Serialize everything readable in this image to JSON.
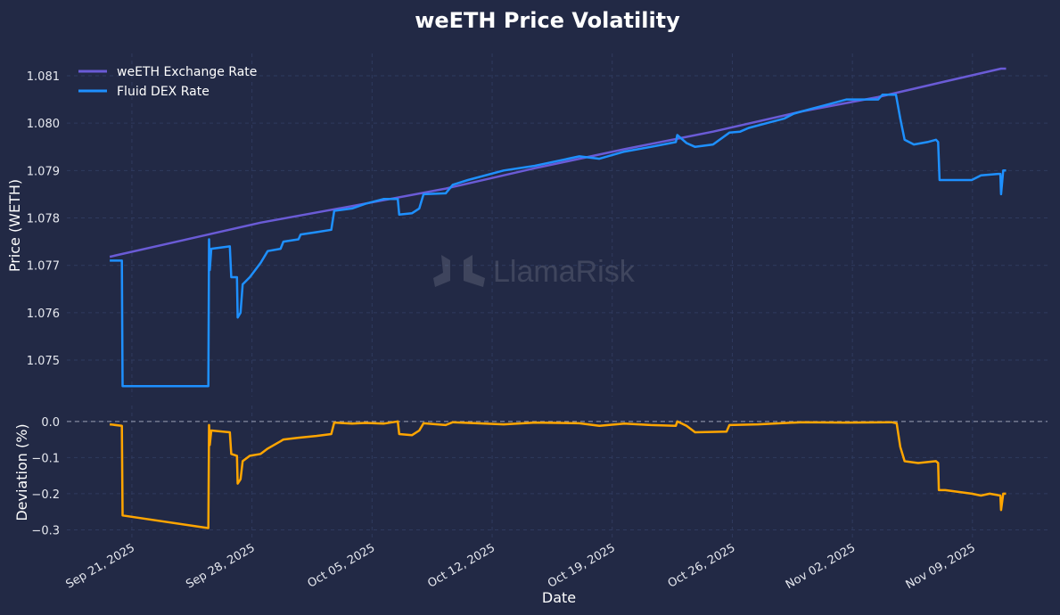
{
  "chart_data": [
    {
      "type": "line",
      "title": "weETH Price Volatility",
      "xlabel": "",
      "ylabel": "Price (WETH)",
      "xlim": [
        "2025-09-17T05:00",
        "2025-11-13T09:00"
      ],
      "ylim": [
        1.07423,
        1.08147
      ],
      "yticks": [
        1.075,
        1.076,
        1.077,
        1.078,
        1.079,
        1.08,
        1.081
      ],
      "ytick_labels": [
        "1.075",
        "1.076",
        "1.077",
        "1.078",
        "1.079",
        "1.080",
        "1.081"
      ],
      "grid": true,
      "legend_placement": "top-left",
      "series": [
        {
          "name": "weETH Exchange Rate",
          "color": "#6a5bd6",
          "points": [
            [
              "2025-09-19T17:00",
              1.07718
            ],
            [
              "2025-09-23T00:00",
              1.07745
            ],
            [
              "2025-09-28T12:00",
              1.0779
            ],
            [
              "2025-10-03T20:00",
              1.07825
            ],
            [
              "2025-10-09T07:00",
              1.07862
            ],
            [
              "2025-10-14T12:00",
              1.07905
            ],
            [
              "2025-10-19T17:00",
              1.07945
            ],
            [
              "2025-10-24T21:00",
              1.07982
            ],
            [
              "2025-10-30T02:00",
              1.08025
            ],
            [
              "2025-11-03T12:00",
              1.08055
            ],
            [
              "2025-11-07T10:00",
              1.08088
            ],
            [
              "2025-11-10T16:00",
              1.08115
            ],
            [
              "2025-11-10T23:00",
              1.08115
            ]
          ]
        },
        {
          "name": "Fluid DEX Rate",
          "color": "#1e90ff",
          "points": [
            [
              "2025-09-19T17:00",
              1.0771
            ],
            [
              "2025-09-20T10:00",
              1.0771
            ],
            [
              "2025-09-20T11:00",
              1.07445
            ],
            [
              "2025-09-25T11:00",
              1.07445
            ],
            [
              "2025-09-25T12:00",
              1.07755
            ],
            [
              "2025-09-25T13:00",
              1.0769
            ],
            [
              "2025-09-25T15:00",
              1.07735
            ],
            [
              "2025-09-26T17:00",
              1.0774
            ],
            [
              "2025-09-26T19:00",
              1.07675
            ],
            [
              "2025-09-27T03:00",
              1.07675
            ],
            [
              "2025-09-27T04:00",
              1.0759
            ],
            [
              "2025-09-27T08:00",
              1.076
            ],
            [
              "2025-09-27T11:00",
              1.0766
            ],
            [
              "2025-09-27T21:00",
              1.07675
            ],
            [
              "2025-09-28T12:00",
              1.07705
            ],
            [
              "2025-09-28T22:00",
              1.0773
            ],
            [
              "2025-09-29T16:00",
              1.07735
            ],
            [
              "2025-09-29T20:00",
              1.0775
            ],
            [
              "2025-09-30T17:00",
              1.07755
            ],
            [
              "2025-09-30T20:00",
              1.07765
            ],
            [
              "2025-10-01T18:00",
              1.0777
            ],
            [
              "2025-10-02T15:00",
              1.07775
            ],
            [
              "2025-10-02T19:00",
              1.07815
            ],
            [
              "2025-10-03T20:00",
              1.0782
            ],
            [
              "2025-10-04T15:00",
              1.0783
            ],
            [
              "2025-10-05T16:00",
              1.0784
            ],
            [
              "2025-10-06T12:00",
              1.0784
            ],
            [
              "2025-10-06T14:00",
              1.07807
            ],
            [
              "2025-10-07T08:00",
              1.0781
            ],
            [
              "2025-10-07T18:00",
              1.0782
            ],
            [
              "2025-10-08T00:00",
              1.0785
            ],
            [
              "2025-10-09T07:00",
              1.07852
            ],
            [
              "2025-10-09T17:00",
              1.0787
            ],
            [
              "2025-10-10T14:00",
              1.0788
            ],
            [
              "2025-10-12T16:00",
              1.079
            ],
            [
              "2025-10-14T12:00",
              1.0791
            ],
            [
              "2025-10-15T19:00",
              1.0792
            ],
            [
              "2025-10-17T02:00",
              1.0793
            ],
            [
              "2025-10-18T06:00",
              1.07925
            ],
            [
              "2025-10-19T17:00",
              1.0794
            ],
            [
              "2025-10-21T06:00",
              1.0795
            ],
            [
              "2025-10-22T17:00",
              1.0796
            ],
            [
              "2025-10-22T19:00",
              1.07975
            ],
            [
              "2025-10-23T08:00",
              1.07958
            ],
            [
              "2025-10-23T20:00",
              1.0795
            ],
            [
              "2025-10-24T21:00",
              1.07955
            ],
            [
              "2025-10-25T20:00",
              1.0798
            ],
            [
              "2025-10-26T11:00",
              1.07982
            ],
            [
              "2025-10-26T23:00",
              1.0799
            ],
            [
              "2025-10-28T00:00",
              1.08
            ],
            [
              "2025-10-29T01:00",
              1.0801
            ],
            [
              "2025-10-29T14:00",
              1.0802
            ],
            [
              "2025-10-30T14:00",
              1.0803
            ],
            [
              "2025-10-31T15:00",
              1.0804
            ],
            [
              "2025-11-01T16:00",
              1.0805
            ],
            [
              "2025-11-03T12:00",
              1.0805
            ],
            [
              "2025-11-03T18:00",
              1.0806
            ],
            [
              "2025-11-04T13:00",
              1.0806
            ],
            [
              "2025-11-04T19:00",
              1.0801
            ],
            [
              "2025-11-05T01:00",
              1.07965
            ],
            [
              "2025-11-05T14:00",
              1.07955
            ],
            [
              "2025-11-06T09:00",
              1.0796
            ],
            [
              "2025-11-06T21:00",
              1.07965
            ],
            [
              "2025-11-07T00:00",
              1.0796
            ],
            [
              "2025-11-07T02:00",
              1.0788
            ],
            [
              "2025-11-08T23:00",
              1.0788
            ],
            [
              "2025-11-09T12:00",
              1.0789
            ],
            [
              "2025-11-10T12:00",
              1.07893
            ],
            [
              "2025-11-10T15:00",
              1.07893
            ],
            [
              "2025-11-10T16:00",
              1.0785
            ],
            [
              "2025-11-10T19:00",
              1.079
            ],
            [
              "2025-11-10T23:00",
              1.079
            ]
          ]
        }
      ]
    },
    {
      "type": "line",
      "xlabel": "Date",
      "ylabel": "Deviation (%)",
      "xlim": [
        "2025-09-17T05:00",
        "2025-11-13T09:00"
      ],
      "ylim": [
        -0.321,
        0.044
      ],
      "yticks": [
        0.0,
        -0.1,
        -0.2,
        -0.3
      ],
      "ytick_labels": [
        "0.0",
        "−0.1",
        "−0.2",
        "−0.3"
      ],
      "xticks": [
        "2025-09-21",
        "2025-09-28",
        "2025-10-05",
        "2025-10-12",
        "2025-10-19",
        "2025-10-26",
        "2025-11-02",
        "2025-11-09"
      ],
      "xtick_labels": [
        "Sep 21, 2025",
        "Sep 28, 2025",
        "Oct 05, 2025",
        "Oct 12, 2025",
        "Oct 19, 2025",
        "Oct 26, 2025",
        "Nov 02, 2025",
        "Nov 09, 2025"
      ],
      "reference_line": 0.0,
      "grid": true,
      "series": [
        {
          "color": "#ffa500",
          "points": [
            [
              "2025-09-19T17:00",
              -0.008
            ],
            [
              "2025-09-20T10:00",
              -0.012
            ],
            [
              "2025-09-20T11:00",
              -0.26
            ],
            [
              "2025-09-25T11:00",
              -0.295
            ],
            [
              "2025-09-25T12:00",
              -0.01
            ],
            [
              "2025-09-25T13:00",
              -0.065
            ],
            [
              "2025-09-25T15:00",
              -0.025
            ],
            [
              "2025-09-26T17:00",
              -0.03
            ],
            [
              "2025-09-26T19:00",
              -0.09
            ],
            [
              "2025-09-27T03:00",
              -0.095
            ],
            [
              "2025-09-27T04:00",
              -0.172
            ],
            [
              "2025-09-27T08:00",
              -0.16
            ],
            [
              "2025-09-27T11:00",
              -0.11
            ],
            [
              "2025-09-27T21:00",
              -0.095
            ],
            [
              "2025-09-28T12:00",
              -0.09
            ],
            [
              "2025-09-28T22:00",
              -0.075
            ],
            [
              "2025-09-29T16:00",
              -0.055
            ],
            [
              "2025-09-29T20:00",
              -0.05
            ],
            [
              "2025-09-30T17:00",
              -0.045
            ],
            [
              "2025-10-01T18:00",
              -0.04
            ],
            [
              "2025-10-02T15:00",
              -0.035
            ],
            [
              "2025-10-02T19:00",
              -0.003
            ],
            [
              "2025-10-03T20:00",
              -0.006
            ],
            [
              "2025-10-04T15:00",
              -0.004
            ],
            [
              "2025-10-05T16:00",
              -0.006
            ],
            [
              "2025-10-06T12:00",
              0.0
            ],
            [
              "2025-10-06T14:00",
              -0.035
            ],
            [
              "2025-10-07T08:00",
              -0.038
            ],
            [
              "2025-10-07T18:00",
              -0.025
            ],
            [
              "2025-10-08T00:00",
              -0.005
            ],
            [
              "2025-10-09T07:00",
              -0.01
            ],
            [
              "2025-10-09T17:00",
              -0.002
            ],
            [
              "2025-10-12T16:00",
              -0.008
            ],
            [
              "2025-10-14T12:00",
              -0.003
            ],
            [
              "2025-10-17T02:00",
              -0.005
            ],
            [
              "2025-10-18T06:00",
              -0.012
            ],
            [
              "2025-10-19T17:00",
              -0.006
            ],
            [
              "2025-10-21T06:00",
              -0.01
            ],
            [
              "2025-10-22T17:00",
              -0.012
            ],
            [
              "2025-10-22T19:00",
              0.0
            ],
            [
              "2025-10-23T08:00",
              -0.012
            ],
            [
              "2025-10-23T20:00",
              -0.03
            ],
            [
              "2025-10-25T16:00",
              -0.028
            ],
            [
              "2025-10-25T20:00",
              -0.01
            ],
            [
              "2025-10-27T12:00",
              -0.008
            ],
            [
              "2025-10-30T02:00",
              -0.002
            ],
            [
              "2025-11-01T16:00",
              -0.003
            ],
            [
              "2025-11-04T07:00",
              -0.002
            ],
            [
              "2025-11-04T14:00",
              -0.005
            ],
            [
              "2025-11-04T19:00",
              -0.07
            ],
            [
              "2025-11-05T01:00",
              -0.11
            ],
            [
              "2025-11-05T20:00",
              -0.115
            ],
            [
              "2025-11-06T21:00",
              -0.11
            ],
            [
              "2025-11-07T00:00",
              -0.115
            ],
            [
              "2025-11-07T01:00",
              -0.19
            ],
            [
              "2025-11-07T10:00",
              -0.19
            ],
            [
              "2025-11-08T23:00",
              -0.2
            ],
            [
              "2025-11-09T12:00",
              -0.205
            ],
            [
              "2025-11-10T00:00",
              -0.2
            ],
            [
              "2025-11-10T15:00",
              -0.205
            ],
            [
              "2025-11-10T16:00",
              -0.245
            ],
            [
              "2025-11-10T19:00",
              -0.2
            ],
            [
              "2025-11-10T23:00",
              -0.2
            ]
          ]
        }
      ]
    }
  ],
  "watermark": {
    "text": "LlamaRisk"
  },
  "colors": {
    "background": "#222945",
    "grid": "#2f3a5e",
    "zero_line": "#9aa0b4"
  }
}
